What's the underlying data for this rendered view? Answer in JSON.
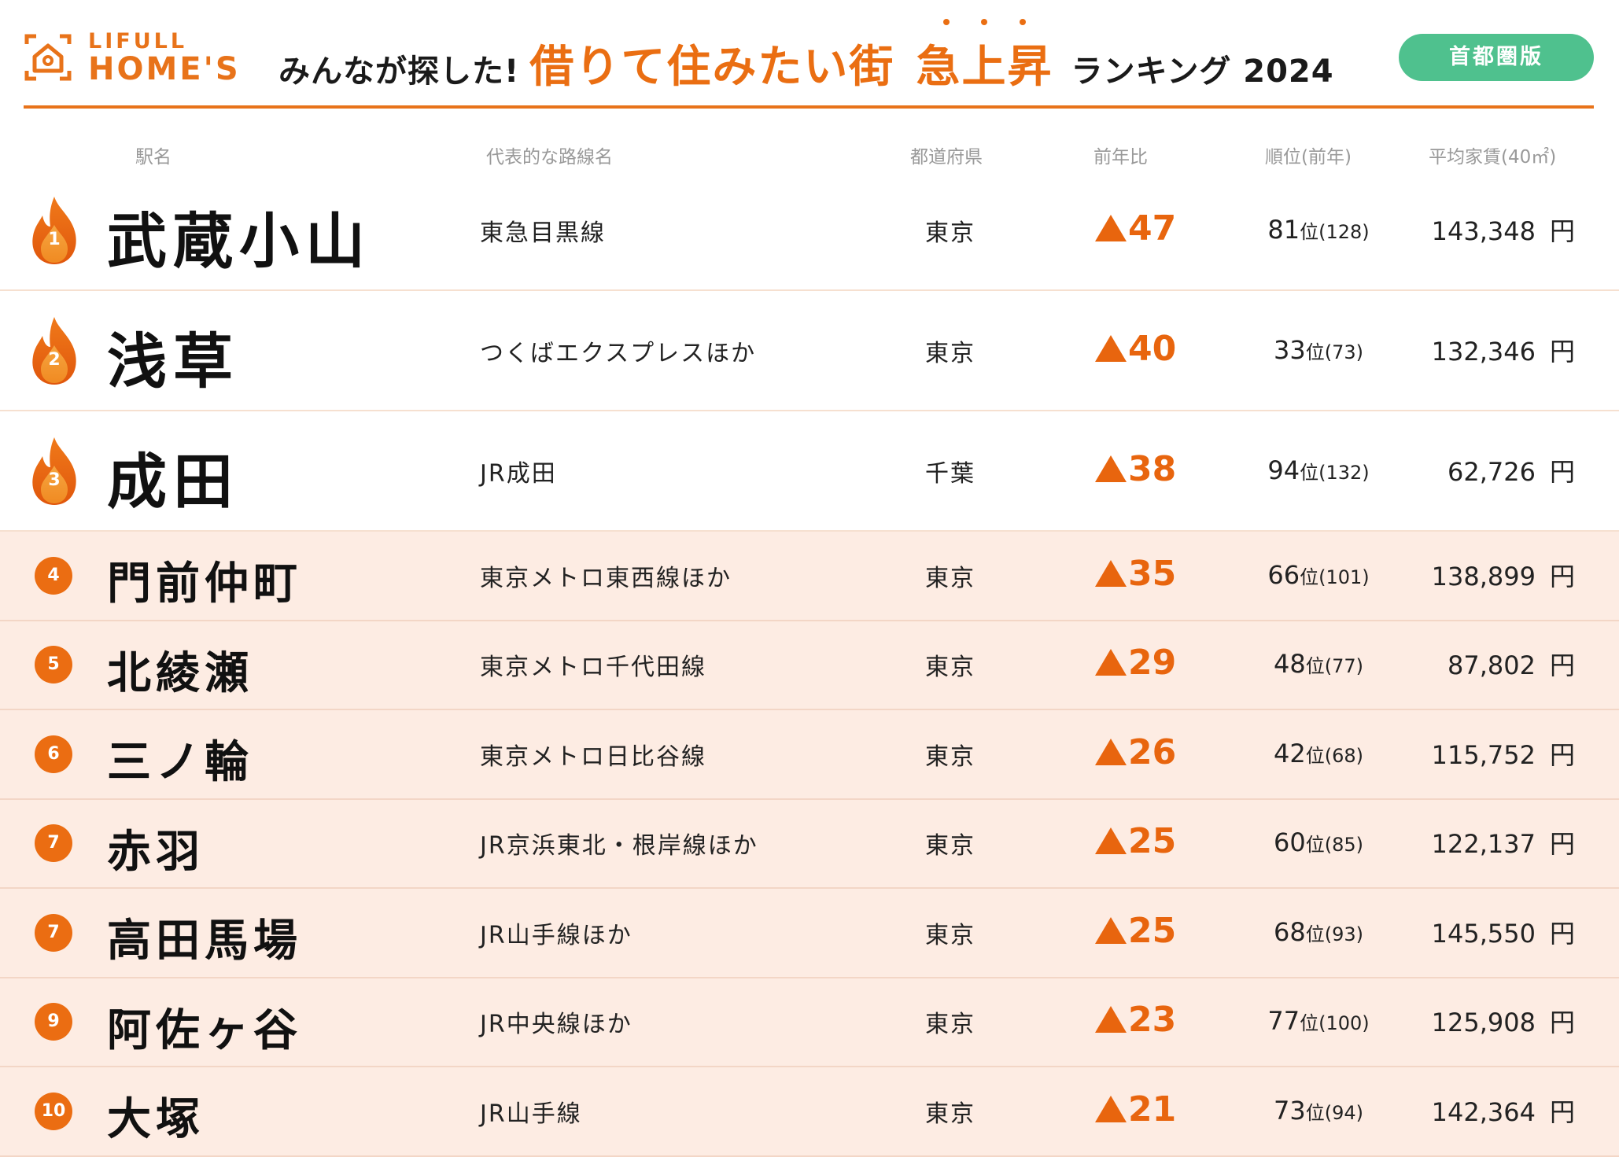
{
  "brand": {
    "logo_top": "LIFULL",
    "logo_main": "HOME'S"
  },
  "title": {
    "prefix": "みんなが探した!",
    "main": "借りて住みたい街",
    "accent": "急上昇",
    "suffix": "ランキング 2024"
  },
  "badge": "首都圏版",
  "columns": {
    "station": "駅名",
    "line": "代表的な路線名",
    "prefecture": "都道府県",
    "change": "前年比",
    "rank": "順位(前年)",
    "rent": "平均家賃(40㎡)"
  },
  "rank_suffix": "位",
  "yen": "円",
  "colors": {
    "accent": "#e8731a",
    "badge": "#4fc18e",
    "row_tint": "#fdece3"
  },
  "rows": [
    {
      "icon": "flame-icon",
      "badge_num": "1",
      "station": "武蔵小山",
      "line": "東急目黒線",
      "prefecture": "東京",
      "change": "47",
      "rank": "81",
      "prev_rank": "(128)",
      "rent": "143,348"
    },
    {
      "icon": "flame-icon",
      "badge_num": "2",
      "station": "浅草",
      "line": "つくばエクスプレスほか",
      "prefecture": "東京",
      "change": "40",
      "rank": "33",
      "prev_rank": "(73)",
      "rent": "132,346"
    },
    {
      "icon": "flame-icon",
      "badge_num": "3",
      "station": "成田",
      "line": "JR成田",
      "prefecture": "千葉",
      "change": "38",
      "rank": "94",
      "prev_rank": "(132)",
      "rent": "62,726"
    },
    {
      "icon": "circle-icon",
      "badge_num": "4",
      "station": "門前仲町",
      "line": "東京メトロ東西線ほか",
      "prefecture": "東京",
      "change": "35",
      "rank": "66",
      "prev_rank": "(101)",
      "rent": "138,899"
    },
    {
      "icon": "circle-icon",
      "badge_num": "5",
      "station": "北綾瀬",
      "line": "東京メトロ千代田線",
      "prefecture": "東京",
      "change": "29",
      "rank": "48",
      "prev_rank": "(77)",
      "rent": "87,802"
    },
    {
      "icon": "circle-icon",
      "badge_num": "6",
      "station": "三ノ輪",
      "line": "東京メトロ日比谷線",
      "prefecture": "東京",
      "change": "26",
      "rank": "42",
      "prev_rank": "(68)",
      "rent": "115,752"
    },
    {
      "icon": "circle-icon",
      "badge_num": "7",
      "station": "赤羽",
      "line": "JR京浜東北・根岸線ほか",
      "prefecture": "東京",
      "change": "25",
      "rank": "60",
      "prev_rank": "(85)",
      "rent": "122,137"
    },
    {
      "icon": "circle-icon",
      "badge_num": "7",
      "station": "高田馬場",
      "line": "JR山手線ほか",
      "prefecture": "東京",
      "change": "25",
      "rank": "68",
      "prev_rank": "(93)",
      "rent": "145,550"
    },
    {
      "icon": "circle-icon",
      "badge_num": "9",
      "station": "阿佐ヶ谷",
      "line": "JR中央線ほか",
      "prefecture": "東京",
      "change": "23",
      "rank": "77",
      "prev_rank": "(100)",
      "rent": "125,908"
    },
    {
      "icon": "circle-icon",
      "badge_num": "10",
      "station": "大塚",
      "line": "JR山手線",
      "prefecture": "東京",
      "change": "21",
      "rank": "73",
      "prev_rank": "(94)",
      "rent": "142,364"
    }
  ]
}
